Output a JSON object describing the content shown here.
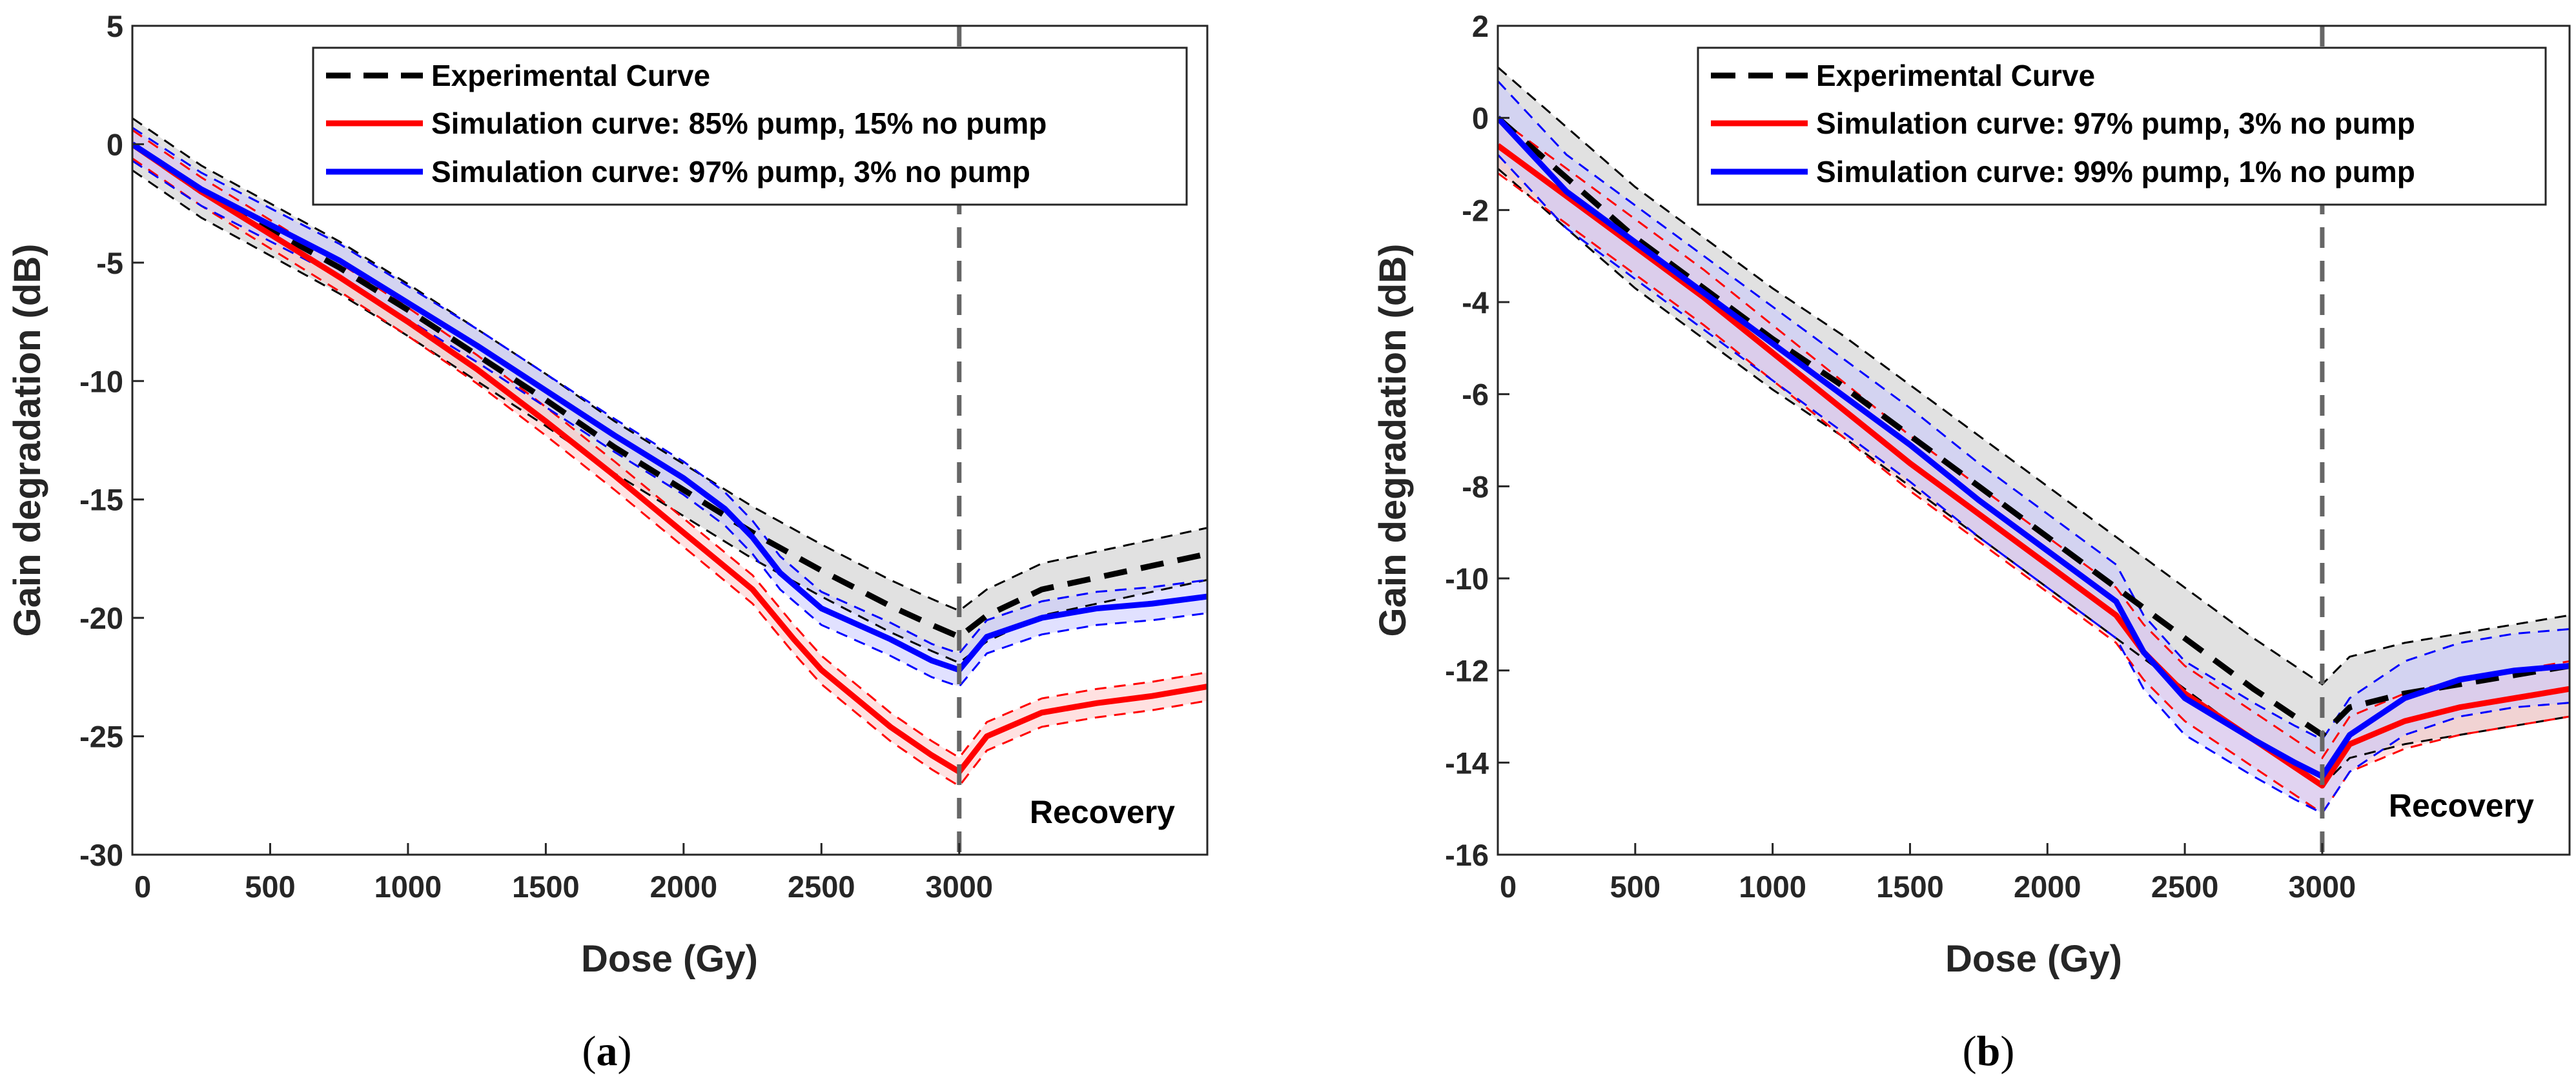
{
  "chart_data": [
    {
      "type": "line",
      "panel_label": "a",
      "xlabel": "Dose (Gy)",
      "ylabel": "Gain degradation (dB)",
      "xlim": [
        0,
        3900
      ],
      "ylim": [
        -30,
        5
      ],
      "x_ticks": [
        0,
        500,
        1000,
        1500,
        2000,
        2500,
        3000
      ],
      "y_ticks": [
        5,
        0,
        -5,
        -10,
        -15,
        -20,
        -25,
        -30
      ],
      "vline_x": 3000,
      "annotation": "Recovery",
      "legend_position": "top-right",
      "series": [
        {
          "name": "Experimental Curve",
          "color": "#000000",
          "fill_color": "#c8c8c8",
          "dashed": true,
          "x": [
            0,
            250,
            500,
            750,
            1000,
            1250,
            1500,
            1750,
            2000,
            2250,
            2500,
            2750,
            2900,
            3000,
            3100,
            3300,
            3500,
            3700,
            3900
          ],
          "y": [
            0,
            -2.0,
            -3.6,
            -5.2,
            -7.0,
            -8.9,
            -10.8,
            -12.8,
            -14.6,
            -16.4,
            -18.0,
            -19.5,
            -20.3,
            -20.8,
            -19.9,
            -18.8,
            -18.3,
            -17.8,
            -17.3
          ],
          "band": 1.1
        },
        {
          "name": "Simulation curve: 85% pump, 15% no pump",
          "color": "#ff0000",
          "fill_color": "#ffc8c8",
          "dashed": false,
          "x": [
            0,
            250,
            500,
            750,
            1000,
            1250,
            1500,
            1750,
            2000,
            2250,
            2400,
            2500,
            2750,
            2900,
            3000,
            3100,
            3300,
            3500,
            3700,
            3900
          ],
          "y": [
            0,
            -2.0,
            -3.8,
            -5.6,
            -7.5,
            -9.5,
            -11.7,
            -14.0,
            -16.4,
            -18.8,
            -20.9,
            -22.2,
            -24.6,
            -25.8,
            -26.5,
            -25.0,
            -24.0,
            -23.6,
            -23.3,
            -22.9
          ],
          "band": 0.6
        },
        {
          "name": "Simulation curve: 97% pump, 3% no pump",
          "color": "#0000ff",
          "fill_color": "#c8c8ff",
          "dashed": false,
          "x": [
            0,
            250,
            500,
            750,
            1000,
            1250,
            1500,
            1750,
            2000,
            2150,
            2250,
            2350,
            2500,
            2750,
            2900,
            3000,
            3100,
            3300,
            3500,
            3700,
            3900
          ],
          "y": [
            0,
            -1.9,
            -3.4,
            -4.9,
            -6.7,
            -8.5,
            -10.4,
            -12.3,
            -14.1,
            -15.4,
            -16.6,
            -18.1,
            -19.6,
            -20.9,
            -21.8,
            -22.2,
            -20.8,
            -20.0,
            -19.6,
            -19.4,
            -19.1
          ],
          "band": 0.7
        }
      ]
    },
    {
      "type": "line",
      "panel_label": "b",
      "xlabel": "Dose (Gy)",
      "ylabel": "Gain degradation (dB)",
      "xlim": [
        0,
        3900
      ],
      "ylim": [
        -16,
        2
      ],
      "x_ticks": [
        0,
        500,
        1000,
        1500,
        2000,
        2500,
        3000
      ],
      "y_ticks": [
        2,
        0,
        -2,
        -4,
        -6,
        -8,
        -10,
        -12,
        -14,
        -16
      ],
      "vline_x": 3000,
      "annotation": "Recovery",
      "legend_position": "top-right",
      "series": [
        {
          "name": "Experimental Curve",
          "color": "#000000",
          "fill_color": "#c8c8c8",
          "dashed": true,
          "x": [
            0,
            250,
            500,
            750,
            1000,
            1250,
            1500,
            1750,
            2000,
            2250,
            2500,
            2750,
            2900,
            3000,
            3100,
            3300,
            3500,
            3700,
            3900
          ],
          "y": [
            0,
            -1.3,
            -2.6,
            -3.7,
            -4.8,
            -5.8,
            -6.9,
            -8.0,
            -9.1,
            -10.2,
            -11.3,
            -12.4,
            -13.0,
            -13.4,
            -12.8,
            -12.5,
            -12.3,
            -12.1,
            -11.9
          ],
          "band": 1.1
        },
        {
          "name": "Simulation curve: 97% pump, 3% no pump",
          "color": "#ff0000",
          "fill_color": "#ffc8c8",
          "dashed": false,
          "x": [
            0,
            250,
            500,
            750,
            1000,
            1250,
            1500,
            1750,
            2000,
            2250,
            2350,
            2500,
            2750,
            2900,
            3000,
            3100,
            3300,
            3500,
            3700,
            3900
          ],
          "y": [
            -0.6,
            -1.7,
            -2.8,
            -3.9,
            -5.1,
            -6.3,
            -7.5,
            -8.6,
            -9.7,
            -10.8,
            -11.6,
            -12.5,
            -13.5,
            -14.1,
            -14.5,
            -13.6,
            -13.1,
            -12.8,
            -12.6,
            -12.4
          ],
          "band": 0.6
        },
        {
          "name": "Simulation curve: 99% pump, 1% no pump",
          "color": "#0000ff",
          "fill_color": "#c8c8ff",
          "dashed": false,
          "x": [
            0,
            250,
            500,
            750,
            1000,
            1250,
            1500,
            1750,
            2000,
            2250,
            2350,
            2500,
            2750,
            2900,
            3000,
            3100,
            3300,
            3500,
            3700,
            3900
          ],
          "y": [
            0,
            -1.6,
            -2.7,
            -3.8,
            -4.9,
            -6.0,
            -7.1,
            -8.3,
            -9.4,
            -10.5,
            -11.6,
            -12.6,
            -13.5,
            -14.0,
            -14.3,
            -13.4,
            -12.6,
            -12.2,
            -12.0,
            -11.9
          ],
          "band": 0.8
        }
      ]
    }
  ]
}
